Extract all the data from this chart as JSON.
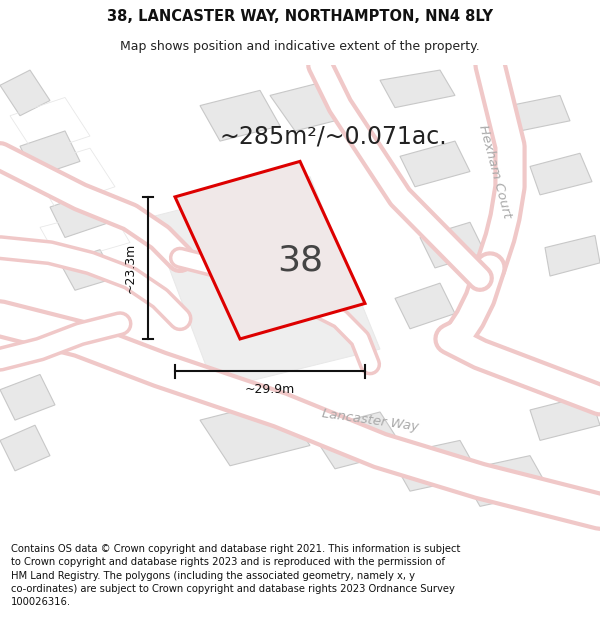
{
  "title_line1": "38, LANCASTER WAY, NORTHAMPTON, NN4 8LY",
  "title_line2": "Map shows position and indicative extent of the property.",
  "area_text": "~285m²/~0.071ac.",
  "property_number": "38",
  "dim_width": "~29.9m",
  "dim_height": "~23.3m",
  "footer_text": "Contains OS data © Crown copyright and database right 2021. This information is subject to Crown copyright and database rights 2023 and is reproduced with the permission of HM Land Registry. The polygons (including the associated geometry, namely x, y co-ordinates) are subject to Crown copyright and database rights 2023 Ordnance Survey 100026316.",
  "bg_color": "#ffffff",
  "map_bg_color": "#ffffff",
  "road_outline_color": "#f0c8c8",
  "road_fill_color": "#ffffff",
  "building_fill_color": "#e8e8e8",
  "building_edge_color": "#c8c8c8",
  "plot_edge_color": "#e8e8e8",
  "property_fill": "#f0e8e8",
  "property_edge_color": "#dd0000",
  "dim_line_color": "#111111",
  "street_label_color": "#aaaaaa",
  "title_fontsize": 10.5,
  "subtitle_fontsize": 9,
  "area_fontsize": 17,
  "number_fontsize": 26,
  "footer_fontsize": 7.2,
  "street_label_fontsize": 9.5
}
